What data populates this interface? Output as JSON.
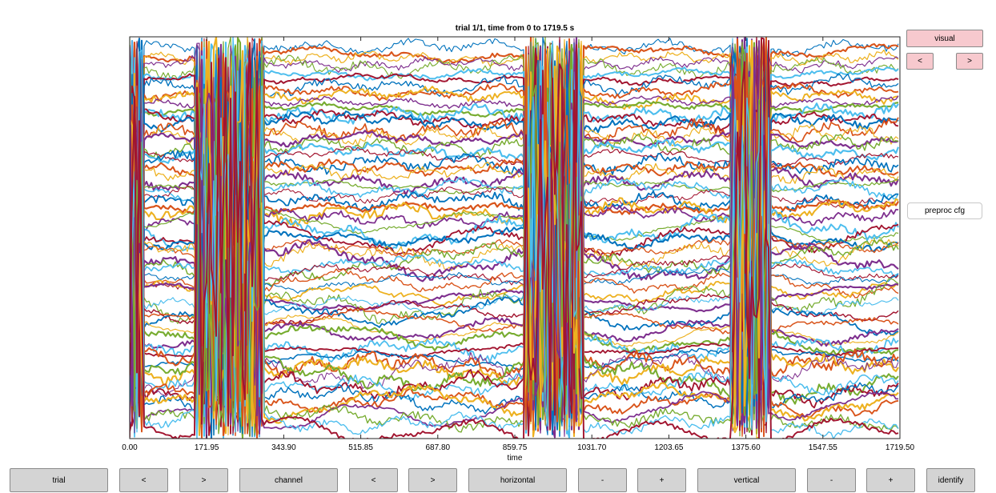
{
  "title": "trial 1/1, time from 0 to 1719.5 s",
  "chart_data": {
    "type": "line",
    "xlabel": "time",
    "ylabel": "",
    "xlim": [
      0,
      1719.5
    ],
    "xticks": [
      "0.00",
      "171.95",
      "343.90",
      "515.85",
      "687.80",
      "859.75",
      "1031.70",
      "1203.65",
      "1375.60",
      "1547.55",
      "1719.50"
    ],
    "grid": false,
    "series_colors": [
      "#0072bd",
      "#d95319",
      "#edb120",
      "#7e2f8e",
      "#77ac30",
      "#4dbeee",
      "#a2142f"
    ],
    "artifact_time_ranges": [
      [
        0,
        30
      ],
      [
        150,
        300
      ],
      [
        880,
        1010
      ],
      [
        1345,
        1430
      ]
    ]
  },
  "side": {
    "visual_label": "visual",
    "prev_label": "<",
    "next_label": ">",
    "preproc_label": "preproc cfg"
  },
  "bottom": {
    "trial_label": "trial",
    "trial_prev": "<",
    "trial_next": ">",
    "channel_label": "channel",
    "channel_prev": "<",
    "channel_next": ">",
    "horizontal_label": "horizontal",
    "horizontal_minus": "-",
    "horizontal_plus": "+",
    "vertical_label": "vertical",
    "vertical_minus": "-",
    "vertical_plus": "+",
    "identify_label": "identify"
  }
}
